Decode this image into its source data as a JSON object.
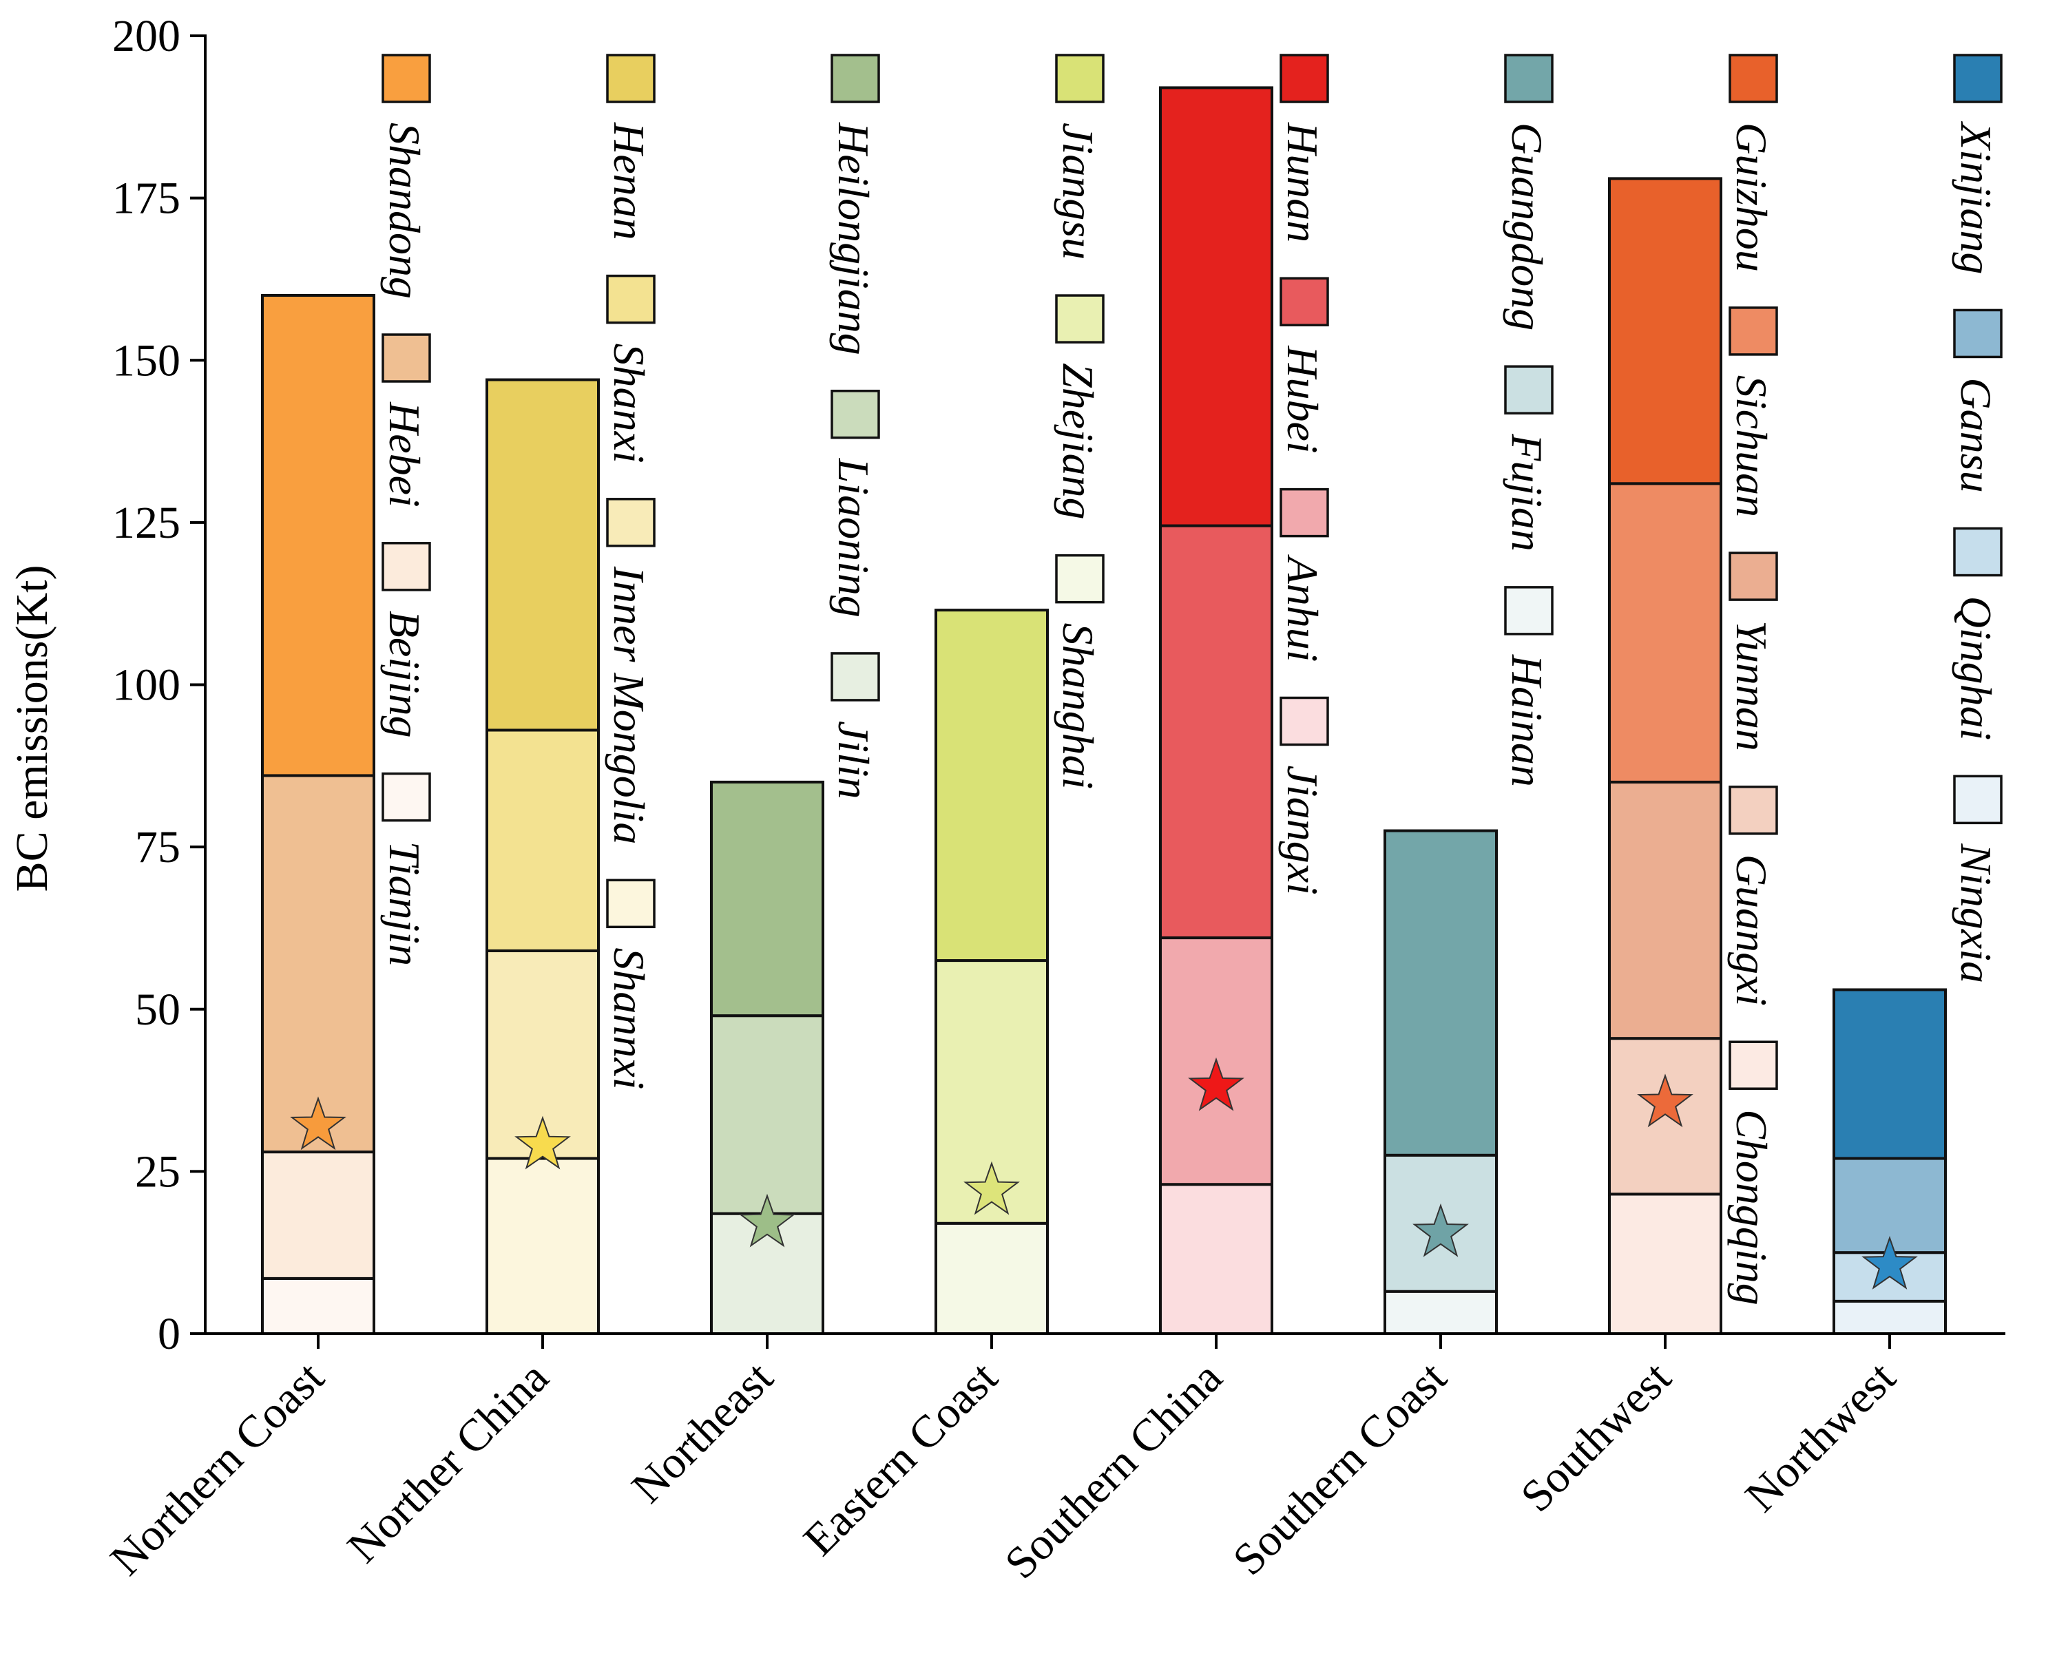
{
  "chart_data": {
    "type": "bar",
    "stacked": true,
    "ylabel": "BC emissions(Kt)",
    "ylim": [
      0,
      200
    ],
    "yticks": [
      0,
      25,
      50,
      75,
      100,
      125,
      150,
      175,
      200
    ],
    "grid": false,
    "legend": "stacked vertically beside each bar",
    "categories": [
      "Northern Coast",
      "Norther China",
      "Northeast",
      "Eastern Coast",
      "Southern China",
      "Southern Coast",
      "Southwest",
      "Northwest"
    ],
    "groups": [
      {
        "category": "Northern Coast",
        "star": 32,
        "star_color": "#F79B3C",
        "segments": [
          {
            "name": "Tianjin",
            "value": 8.5,
            "color": "#FEF7F2"
          },
          {
            "name": "Beijing",
            "value": 19.5,
            "color": "#FCEBDC"
          },
          {
            "name": "Hebei",
            "value": 58,
            "color": "#EFBF92"
          },
          {
            "name": "Shandong",
            "value": 74,
            "color": "#F99F3F"
          }
        ]
      },
      {
        "category": "Norther China",
        "star": 29,
        "star_color": "#F8DB4E",
        "segments": [
          {
            "name": "Shannxi",
            "value": 27,
            "color": "#FCF6DD"
          },
          {
            "name": "Inner Mongolia",
            "value": 32,
            "color": "#F8EBB8"
          },
          {
            "name": "Shanxi",
            "value": 34,
            "color": "#F3E291"
          },
          {
            "name": "Henan",
            "value": 54,
            "color": "#E8CF5F"
          }
        ]
      },
      {
        "category": "Northeast",
        "star": 17,
        "star_color": "#9DBE88",
        "segments": [
          {
            "name": "Jilin",
            "value": 18.5,
            "color": "#E7EFE1"
          },
          {
            "name": "Liaoning",
            "value": 30.5,
            "color": "#CBDCBC"
          },
          {
            "name": "Heilongjiang",
            "value": 36,
            "color": "#A3BF8D"
          }
        ]
      },
      {
        "category": "Eastern Coast",
        "star": 22,
        "star_color": "#DDE47A",
        "segments": [
          {
            "name": "Shanghai",
            "value": 17,
            "color": "#F5F9E6"
          },
          {
            "name": "Zhejiang",
            "value": 40.5,
            "color": "#E9F0B2"
          },
          {
            "name": "Jiangsu",
            "value": 54,
            "color": "#D9E276"
          }
        ]
      },
      {
        "category": "Southern China",
        "star": 38,
        "star_color": "#EE1818",
        "segments": [
          {
            "name": "Jiangxi",
            "value": 23,
            "color": "#FBDDDF"
          },
          {
            "name": "Anhui",
            "value": 38,
            "color": "#F1A9AD"
          },
          {
            "name": "Hubei",
            "value": 63.5,
            "color": "#E85A5D"
          },
          {
            "name": "Hunan",
            "value": 67.5,
            "color": "#E4221E"
          }
        ]
      },
      {
        "category": "Southern Coast",
        "star": 15.5,
        "star_color": "#6FA3A6",
        "segments": [
          {
            "name": "Hainan",
            "value": 6.5,
            "color": "#F0F6F6"
          },
          {
            "name": "Fujian",
            "value": 21,
            "color": "#CBE0E2"
          },
          {
            "name": "Guangdong",
            "value": 50,
            "color": "#73A6A9"
          }
        ]
      },
      {
        "category": "Southwest",
        "star": 35.5,
        "star_color": "#EC6A3A",
        "segments": [
          {
            "name": "Chongqing",
            "value": 21.5,
            "color": "#FCEAE3"
          },
          {
            "name": "Guangxi",
            "value": 24,
            "color": "#F3D0C0"
          },
          {
            "name": "Yunnan",
            "value": 39.5,
            "color": "#EBAE91"
          },
          {
            "name": "Sichuan",
            "value": 46,
            "color": "#EE8B63"
          },
          {
            "name": "Guizhou",
            "value": 47,
            "color": "#E8612B"
          }
        ]
      },
      {
        "category": "Northwest",
        "star": 10.5,
        "star_color": "#2D8BC6",
        "segments": [
          {
            "name": "Ningxia",
            "value": 5,
            "color": "#E9F2F8"
          },
          {
            "name": "Qinghai",
            "value": 7.5,
            "color": "#C6DEEC"
          },
          {
            "name": "Gansu",
            "value": 14.5,
            "color": "#8DB8D2"
          },
          {
            "name": "Xinjiang",
            "value": 26,
            "color": "#2A7FB2"
          }
        ]
      }
    ]
  }
}
